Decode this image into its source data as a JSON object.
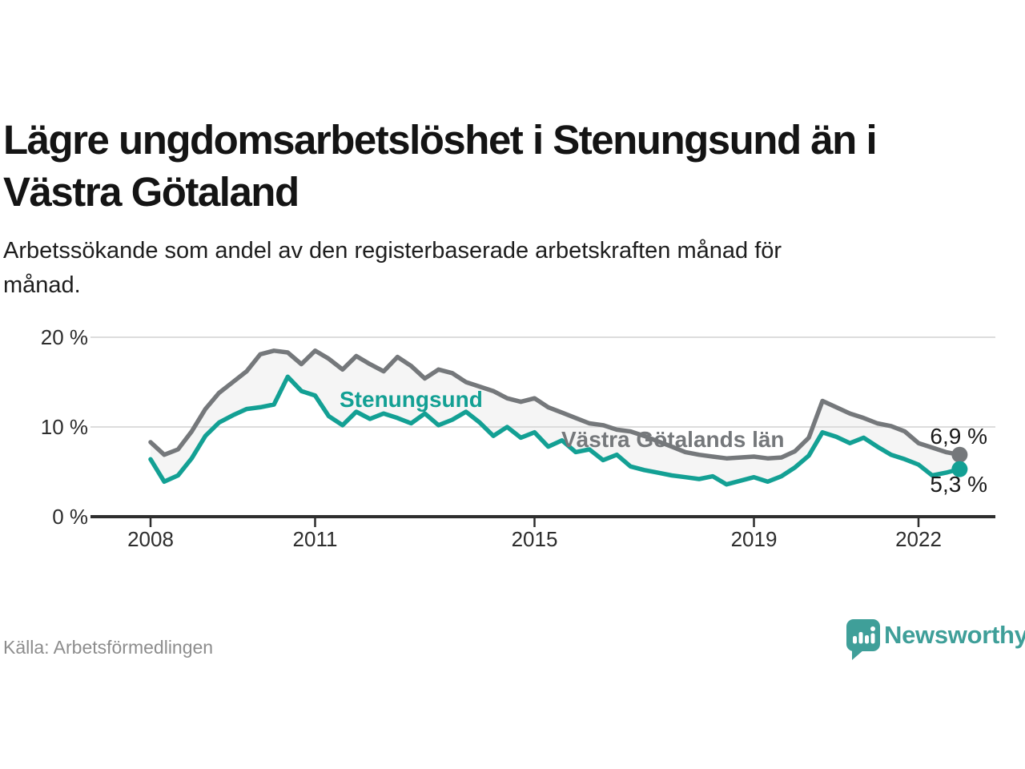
{
  "header": {
    "title_line1": "Lägre ungdomsarbetslöshet i Stenungsund än i",
    "title_line2": "Västra Götaland",
    "subtitle_line1": "Arbetssökande som andel av den registerbaserade arbetskraften månad för",
    "subtitle_line2": "månad."
  },
  "footer": {
    "source": "Källa: Arbetsförmedlingen",
    "brand": "Newsworthy",
    "brand_color": "#3f9f99",
    "logo_icon": "speech-bubble-bar-chart-icon"
  },
  "chart_data": {
    "type": "line",
    "unit": "%",
    "x_start": 2008,
    "x_step_years": 0.25,
    "x_ticks": [
      2008,
      2011,
      2015,
      2019,
      2022
    ],
    "y_ticks": [
      {
        "value": 0,
        "label": "0 %"
      },
      {
        "value": 10,
        "label": "10 %"
      },
      {
        "value": 20,
        "label": "20 %"
      }
    ],
    "ylim": [
      0,
      21.5
    ],
    "grid": "horizontal-only",
    "band_fill": "#f5f5f5",
    "axis_color": "#2e2e2e",
    "grid_color": "#dcdcdc",
    "series": [
      {
        "name": "Västra Götalands län",
        "color": "#75787b",
        "end_value_label": "6,9 %",
        "values": [
          8.3,
          6.9,
          7.5,
          9.5,
          12.0,
          13.8,
          15.0,
          16.2,
          18.1,
          18.5,
          18.3,
          17.0,
          18.5,
          17.6,
          16.4,
          17.9,
          17.0,
          16.2,
          17.8,
          16.8,
          15.4,
          16.4,
          16.0,
          15.0,
          14.5,
          14.0,
          13.2,
          12.8,
          13.2,
          12.2,
          11.6,
          11.0,
          10.4,
          10.2,
          9.7,
          9.5,
          9.0,
          8.4,
          7.8,
          7.2,
          6.9,
          6.7,
          6.5,
          6.6,
          6.7,
          6.5,
          6.6,
          7.3,
          8.8,
          12.9,
          12.2,
          11.5,
          11.0,
          10.4,
          10.1,
          9.5,
          8.2,
          7.7,
          7.2,
          6.9
        ]
      },
      {
        "name": "Stenungsund",
        "color": "#13a094",
        "end_value_label": "5,3 %",
        "values": [
          6.4,
          3.9,
          4.6,
          6.5,
          9.0,
          10.5,
          11.3,
          12.0,
          12.2,
          12.5,
          15.6,
          14.0,
          13.5,
          11.2,
          10.2,
          11.7,
          10.9,
          11.5,
          11.0,
          10.4,
          11.5,
          10.2,
          10.8,
          11.7,
          10.5,
          9.0,
          10.0,
          8.8,
          9.4,
          7.8,
          8.5,
          7.2,
          7.5,
          6.3,
          6.9,
          5.6,
          5.2,
          4.9,
          4.6,
          4.4,
          4.2,
          4.5,
          3.6,
          4.0,
          4.4,
          3.9,
          4.5,
          5.5,
          6.8,
          9.4,
          8.9,
          8.2,
          8.8,
          7.8,
          6.9,
          6.4,
          5.8,
          4.6,
          4.9,
          5.3
        ]
      }
    ]
  }
}
